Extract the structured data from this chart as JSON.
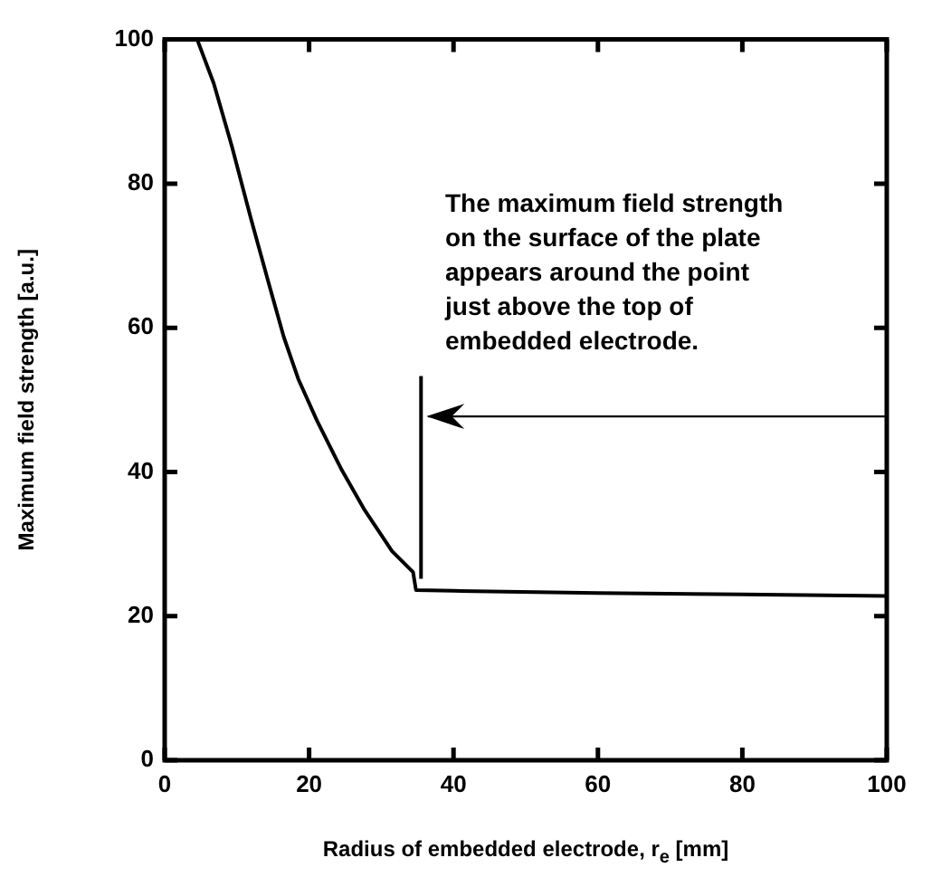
{
  "chart_data": {
    "type": "line",
    "xlabel": "Radius of embedded electrode, r$_{e}$ [mm]",
    "ylabel": "Maximum field strength [a.u.]",
    "x": [
      4.5,
      6.8,
      9.3,
      11.9,
      14.4,
      16.5,
      18.5,
      21.1,
      24.4,
      27.7,
      31.5,
      34.4,
      34.8,
      40,
      60,
      80,
      100
    ],
    "series": [
      {
        "color": "#000000",
        "values": [
          100,
          93.9,
          85.2,
          75.3,
          66.2,
          58.7,
          52.9,
          47.1,
          40.5,
          34.7,
          29.0,
          26.1,
          23.6,
          23.5,
          23.2,
          23.0,
          22.8
        ]
      }
    ],
    "xlim": [
      0,
      100
    ],
    "xticks": [
      0,
      20,
      40,
      60,
      80,
      100
    ],
    "ylim": [
      0,
      100
    ],
    "yticks": [
      0,
      20,
      40,
      60,
      80,
      100
    ],
    "marker": "none",
    "line_style": "solid",
    "legend": false,
    "ref_lines": [
      {
        "axis": "x",
        "value": 35.5
      }
    ],
    "annotations": [
      {
        "text": "The maximum field strength on the surface of the plate appears around the point just above the top of embedded electrode.",
        "x": 35.5,
        "y": 47.7
      }
    ]
  }
}
